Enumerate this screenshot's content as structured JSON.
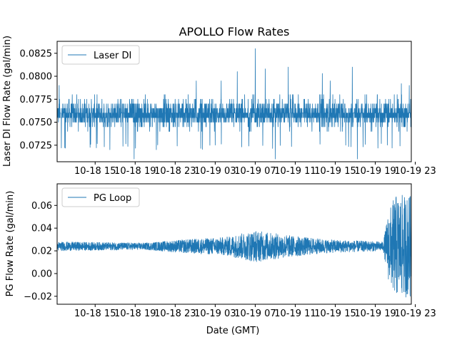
{
  "figure": {
    "title": "APOLLO Flow Rates"
  },
  "chart_data": [
    {
      "type": "line",
      "title": "APOLLO Flow Rates",
      "xlabel": "",
      "ylabel": "Laser DI Flow Rate (gal/min)",
      "x_tick_labels": [
        "10-18 15",
        "10-18 19",
        "10-18 23",
        "10-19 03",
        "10-19 07",
        "10-19 11",
        "10-19 15",
        "10-19 19",
        "10-19 23"
      ],
      "x_tick_hours": [
        15,
        19,
        23,
        27,
        31,
        35,
        39,
        43,
        47
      ],
      "xlim_hours": [
        11.2,
        46.6
      ],
      "y_ticks": [
        0.0725,
        0.075,
        0.0775,
        0.08,
        0.0825
      ],
      "y_tick_labels": [
        "0.0725",
        "0.0750",
        "0.0775",
        "0.0800",
        "0.0825"
      ],
      "ylim": [
        0.0707,
        0.0838
      ],
      "legend": {
        "location": "upper-left",
        "entries": [
          "Laser DI"
        ]
      },
      "series": [
        {
          "name": "Laser DI",
          "color": "#1f77b4",
          "baseline": 0.0757,
          "typical_range": [
            0.074,
            0.077
          ],
          "spikes": [
            {
              "hour": 11.4,
              "value": 0.079
            },
            {
              "hour": 18.9,
              "value": 0.071
            },
            {
              "hour": 25.1,
              "value": 0.0795
            },
            {
              "hour": 27.6,
              "value": 0.0795
            },
            {
              "hour": 29.2,
              "value": 0.0805
            },
            {
              "hour": 31.0,
              "value": 0.083
            },
            {
              "hour": 32.0,
              "value": 0.0808
            },
            {
              "hour": 33.0,
              "value": 0.071
            },
            {
              "hour": 34.3,
              "value": 0.081
            },
            {
              "hour": 37.7,
              "value": 0.0803
            },
            {
              "hour": 38.5,
              "value": 0.0795
            },
            {
              "hour": 40.7,
              "value": 0.081
            },
            {
              "hour": 41.2,
              "value": 0.071
            },
            {
              "hour": 45.6,
              "value": 0.0792
            },
            {
              "hour": 46.4,
              "value": 0.079
            }
          ]
        }
      ]
    },
    {
      "type": "line",
      "title": "",
      "xlabel": "Date (GMT)",
      "ylabel": "PG Flow Rate (gal/min)",
      "x_tick_labels": [
        "10-18 15",
        "10-18 19",
        "10-18 23",
        "10-19 03",
        "10-19 07",
        "10-19 11",
        "10-19 15",
        "10-19 19",
        "10-19 23"
      ],
      "x_tick_hours": [
        15,
        19,
        23,
        27,
        31,
        35,
        39,
        43,
        47
      ],
      "xlim_hours": [
        11.2,
        46.6
      ],
      "y_ticks": [
        -0.02,
        0.0,
        0.02,
        0.04,
        0.06
      ],
      "y_tick_labels": [
        "−0.02",
        "0.00",
        "0.02",
        "0.04",
        "0.06"
      ],
      "ylim": [
        -0.027,
        0.079
      ],
      "legend": {
        "location": "upper-left",
        "entries": [
          "PG Loop"
        ]
      },
      "series": [
        {
          "name": "PG Loop",
          "color": "#1f77b4",
          "baseline": 0.024,
          "amplitude_profile": [
            {
              "hour": 11.2,
              "half_range": 0.004
            },
            {
              "hour": 20.0,
              "half_range": 0.003
            },
            {
              "hour": 24.0,
              "half_range": 0.006
            },
            {
              "hour": 28.0,
              "half_range": 0.008
            },
            {
              "hour": 31.0,
              "half_range": 0.014
            },
            {
              "hour": 32.5,
              "half_range": 0.012
            },
            {
              "hour": 35.0,
              "half_range": 0.009
            },
            {
              "hour": 38.0,
              "half_range": 0.006
            },
            {
              "hour": 43.8,
              "half_range": 0.004
            },
            {
              "hour": 44.3,
              "half_range": 0.03
            },
            {
              "hour": 45.0,
              "half_range": 0.045
            },
            {
              "hour": 46.6,
              "half_range": 0.045
            }
          ],
          "observed_max": 0.074,
          "observed_min": -0.021
        }
      ]
    }
  ]
}
